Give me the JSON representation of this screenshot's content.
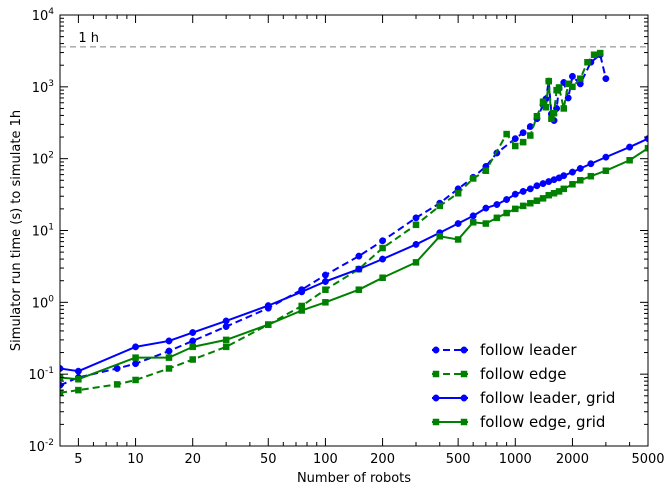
{
  "chart_data": {
    "type": "line",
    "xlabel": "Number of robots",
    "ylabel": "Simulator run time (s) to simulate 1h",
    "xscale": "log",
    "yscale": "log",
    "xlim": [
      4,
      5000
    ],
    "ylim": [
      0.01,
      10000
    ],
    "x_ticks": [
      5,
      10,
      20,
      50,
      100,
      200,
      500,
      1000,
      2000,
      5000
    ],
    "x_tick_labels": [
      "5",
      "10",
      "20",
      "50",
      "100",
      "200",
      "500",
      "1000",
      "2000",
      "5000"
    ],
    "y_ticks": [
      0.01,
      0.1,
      1,
      10,
      100,
      1000,
      10000
    ],
    "y_tick_labels": [
      {
        "base": "10",
        "exp": "-2"
      },
      {
        "base": "10",
        "exp": "-1"
      },
      {
        "base": "10",
        "exp": "0"
      },
      {
        "base": "10",
        "exp": "1"
      },
      {
        "base": "10",
        "exp": "2"
      },
      {
        "base": "10",
        "exp": "3"
      },
      {
        "base": "10",
        "exp": "4"
      }
    ],
    "grid": false,
    "legend_position": "lower-right",
    "reference_line": {
      "y": 3600,
      "label": "1 h",
      "color": "#808080",
      "style": "dashed"
    },
    "series": [
      {
        "name": "follow leader",
        "color": "#0000ff",
        "linestyle": "dashed",
        "marker": "circle",
        "x": [
          4,
          5,
          8,
          10,
          15,
          20,
          30,
          50,
          75,
          100,
          150,
          200,
          300,
          400,
          500,
          600,
          700,
          800,
          1000,
          1100,
          1200,
          1300,
          1400,
          1450,
          1500,
          1550,
          1600,
          1650,
          1700,
          1800,
          1900,
          2000,
          2200,
          2500,
          2800,
          3000
        ],
        "y": [
          0.07,
          0.09,
          0.12,
          0.14,
          0.21,
          0.29,
          0.46,
          0.83,
          1.5,
          2.4,
          4.4,
          7.2,
          15,
          24,
          38,
          55,
          78,
          120,
          190,
          230,
          280,
          360,
          560,
          680,
          1200,
          420,
          340,
          500,
          950,
          1150,
          700,
          1400,
          1100,
          2200,
          2800,
          1300
        ]
      },
      {
        "name": "follow edge",
        "color": "#008000",
        "linestyle": "dashed",
        "marker": "square",
        "x": [
          4,
          5,
          8,
          10,
          15,
          20,
          30,
          50,
          75,
          100,
          150,
          200,
          300,
          400,
          500,
          600,
          700,
          900,
          1000,
          1100,
          1200,
          1300,
          1400,
          1450,
          1500,
          1550,
          1600,
          1650,
          1700,
          1800,
          1900,
          2000,
          2200,
          2400,
          2600,
          2800
        ],
        "y": [
          0.055,
          0.06,
          0.072,
          0.083,
          0.12,
          0.16,
          0.24,
          0.49,
          0.89,
          1.5,
          2.9,
          5.7,
          12,
          22,
          33,
          53,
          68,
          220,
          150,
          170,
          210,
          390,
          620,
          520,
          1200,
          360,
          430,
          900,
          980,
          500,
          1100,
          1000,
          1300,
          2200,
          2800,
          2950
        ]
      },
      {
        "name": "follow leader, grid",
        "color": "#0000ff",
        "linestyle": "solid",
        "marker": "circle",
        "x": [
          4,
          5,
          10,
          15,
          20,
          30,
          50,
          75,
          100,
          150,
          200,
          300,
          400,
          500,
          600,
          700,
          800,
          900,
          1000,
          1100,
          1200,
          1300,
          1400,
          1500,
          1600,
          1700,
          1800,
          2000,
          2200,
          2500,
          3000,
          4000,
          5000
        ],
        "y": [
          0.12,
          0.11,
          0.24,
          0.29,
          0.38,
          0.55,
          0.9,
          1.4,
          1.95,
          2.9,
          4.0,
          6.4,
          9.3,
          12.5,
          16,
          20.5,
          23,
          27,
          32,
          35,
          38,
          42,
          45,
          48,
          51,
          54,
          58,
          65,
          73,
          85,
          105,
          145,
          190
        ]
      },
      {
        "name": "follow edge, grid",
        "color": "#008000",
        "linestyle": "solid",
        "marker": "square",
        "x": [
          4,
          5,
          10,
          15,
          20,
          30,
          50,
          75,
          100,
          150,
          200,
          300,
          400,
          500,
          600,
          700,
          800,
          900,
          1000,
          1100,
          1200,
          1300,
          1400,
          1500,
          1600,
          1700,
          1800,
          2000,
          2200,
          2500,
          3000,
          4000,
          5000
        ],
        "y": [
          0.09,
          0.085,
          0.17,
          0.17,
          0.24,
          0.3,
          0.49,
          0.77,
          1.0,
          1.5,
          2.2,
          3.6,
          8.3,
          7.5,
          13,
          12.5,
          15,
          17.5,
          20,
          22,
          24,
          26,
          28,
          31,
          33,
          35,
          38,
          44,
          50,
          57,
          68,
          95,
          140
        ]
      }
    ]
  }
}
